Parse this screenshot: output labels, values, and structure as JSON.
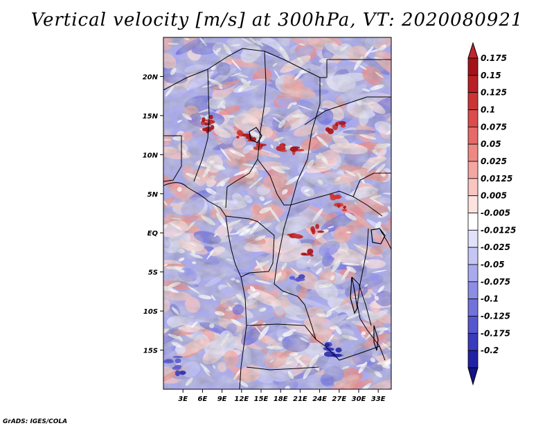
{
  "title": "Vertical velocity [m/s] at 300hPa, VT: 2020080921",
  "credit": "GrADS: IGES/COLA",
  "chart_data": {
    "type": "heatmap",
    "title": "Vertical velocity [m/s] at 300hPa, VT: 2020080921",
    "xlim": [
      0,
      35
    ],
    "ylim": [
      -20,
      25
    ],
    "x_ticks": [
      {
        "value": 3,
        "label": "3E"
      },
      {
        "value": 6,
        "label": "6E"
      },
      {
        "value": 9,
        "label": "9E"
      },
      {
        "value": 12,
        "label": "12E"
      },
      {
        "value": 15,
        "label": "15E"
      },
      {
        "value": 18,
        "label": "18E"
      },
      {
        "value": 21,
        "label": "21E"
      },
      {
        "value": 24,
        "label": "24E"
      },
      {
        "value": 27,
        "label": "27E"
      },
      {
        "value": 30,
        "label": "30E"
      },
      {
        "value": 33,
        "label": "33E"
      }
    ],
    "y_ticks": [
      {
        "value": 20,
        "label": "20N"
      },
      {
        "value": 15,
        "label": "15N"
      },
      {
        "value": 10,
        "label": "10N"
      },
      {
        "value": 5,
        "label": "5N"
      },
      {
        "value": 0,
        "label": "EQ"
      },
      {
        "value": -5,
        "label": "5S"
      },
      {
        "value": -10,
        "label": "10S"
      },
      {
        "value": -15,
        "label": "15S"
      }
    ],
    "colorbar": [
      {
        "label": "0.175",
        "color": "#a3121a"
      },
      {
        "label": "0.15",
        "color": "#b91f24"
      },
      {
        "label": "0.125",
        "color": "#cc3434"
      },
      {
        "label": "0.1",
        "color": "#dc4c4c"
      },
      {
        "label": "0.075",
        "color": "#e56a68"
      },
      {
        "label": "0.05",
        "color": "#ee8884"
      },
      {
        "label": "0.025",
        "color": "#f4a6a2"
      },
      {
        "label": "0.0125",
        "color": "#f9c5c2"
      },
      {
        "label": "0.005",
        "color": "#fde2e0"
      },
      {
        "label": "-0.005",
        "color": "#ffffff"
      },
      {
        "label": "-0.0125",
        "color": "#e1e1fb"
      },
      {
        "label": "-0.025",
        "color": "#c6c6f5"
      },
      {
        "label": "-0.05",
        "color": "#a9a9ee"
      },
      {
        "label": "-0.075",
        "color": "#8d8de6"
      },
      {
        "label": "-0.1",
        "color": "#7272dc"
      },
      {
        "label": "-0.125",
        "color": "#5656cf"
      },
      {
        "label": "-0.175",
        "color": "#3a3abd"
      },
      {
        "label": "-0.2",
        "color": "#2121a4"
      }
    ],
    "colorbar_low_color": "#15128a",
    "colorbar_high_color": "#c0262d",
    "grid": false
  }
}
